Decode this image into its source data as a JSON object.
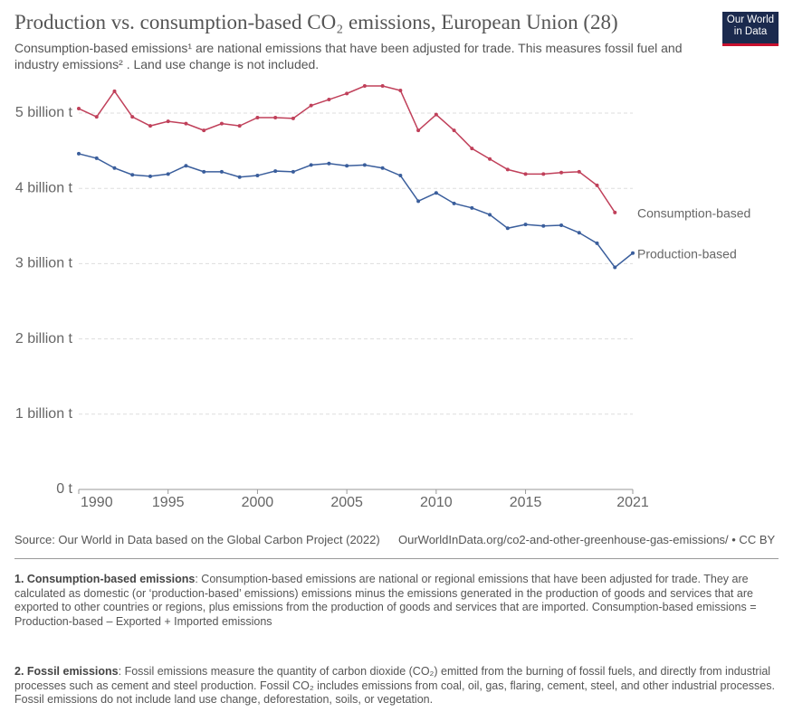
{
  "chart_data": {
    "type": "line",
    "title": "Production vs. consumption-based CO₂ emissions, European Union (28)",
    "subtitle": "Consumption-based emissions¹ are national emissions that have been adjusted for trade. This measures fossil fuel and industry emissions² . Land use change is not included.",
    "logo": [
      "Our World",
      "in Data"
    ],
    "x": [
      1990,
      1991,
      1992,
      1993,
      1994,
      1995,
      1996,
      1997,
      1998,
      1999,
      2000,
      2001,
      2002,
      2003,
      2004,
      2005,
      2006,
      2007,
      2008,
      2009,
      2010,
      2011,
      2012,
      2013,
      2014,
      2015,
      2016,
      2017,
      2018,
      2019,
      2020,
      2021
    ],
    "xlim": [
      1990,
      2021
    ],
    "xticks": [
      1990,
      1995,
      2000,
      2005,
      2010,
      2015,
      2021
    ],
    "ylim": [
      0,
      5.5
    ],
    "yticks": [
      {
        "value": 0,
        "label": "0 t"
      },
      {
        "value": 1,
        "label": "1 billion t"
      },
      {
        "value": 2,
        "label": "2 billion t"
      },
      {
        "value": 3,
        "label": "3 billion t"
      },
      {
        "value": 4,
        "label": "4 billion t"
      },
      {
        "value": 5,
        "label": "5 billion t"
      }
    ],
    "grid": true,
    "series": [
      {
        "name": "Consumption-based",
        "color": "#c0405a",
        "values": [
          5.06,
          4.95,
          5.29,
          4.95,
          4.83,
          4.89,
          4.86,
          4.77,
          4.86,
          4.83,
          4.94,
          4.94,
          4.93,
          5.1,
          5.18,
          5.26,
          5.36,
          5.36,
          5.3,
          4.77,
          4.98,
          4.77,
          4.53,
          4.39,
          4.25,
          4.19,
          4.19,
          4.21,
          4.22,
          4.04,
          3.68,
          null
        ]
      },
      {
        "name": "Production-based",
        "color": "#3a5e9c",
        "values": [
          4.46,
          4.4,
          4.27,
          4.18,
          4.16,
          4.19,
          4.3,
          4.22,
          4.22,
          4.15,
          4.17,
          4.23,
          4.22,
          4.31,
          4.33,
          4.3,
          4.31,
          4.27,
          4.17,
          3.83,
          3.94,
          3.8,
          3.74,
          3.65,
          3.47,
          3.52,
          3.5,
          3.51,
          3.41,
          3.27,
          2.95,
          3.14
        ]
      }
    ],
    "source": "Source: Our World in Data based on the Global Carbon Project (2022)",
    "url": "OurWorldInData.org/co2-and-other-greenhouse-gas-emissions/ • CC BY",
    "footnotes": [
      {
        "title": "1. Consumption-based emissions",
        "text": ": Consumption-based emissions are national or regional emissions that have been adjusted for trade. They are calculated as domestic (or ‘production-based’ emissions) emissions minus the emissions generated in the production of goods and services that are exported to other countries or regions, plus emissions from the production of goods and services that are imported. Consumption-based emissions = Production-based – Exported + Imported emissions"
      },
      {
        "title": "2. Fossil emissions",
        "text": ": Fossil emissions measure the quantity of carbon dioxide (CO₂) emitted from the burning of fossil fuels, and directly from industrial processes such as cement and steel production. Fossil CO₂ includes emissions from coal, oil, gas, flaring, cement, steel, and other industrial processes. Fossil emissions do not include land use change, deforestation, soils, or vegetation."
      }
    ]
  }
}
